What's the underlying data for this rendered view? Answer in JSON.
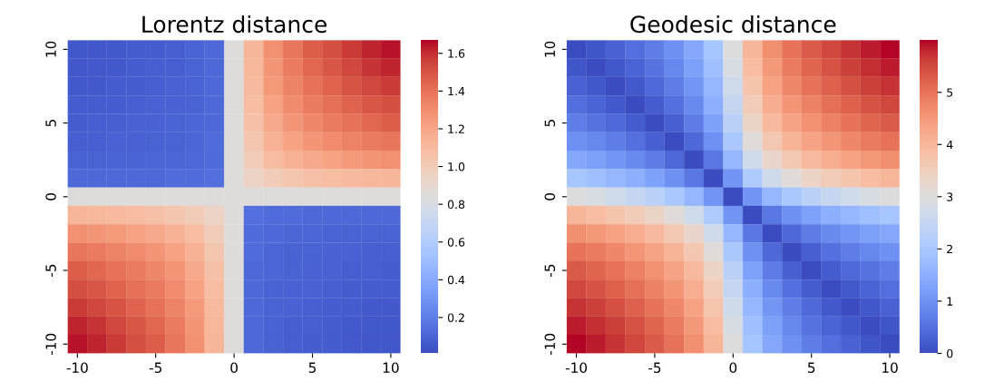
{
  "chart_data": [
    {
      "type": "heatmap",
      "title": "Lorentz distance",
      "categories": [
        "-10",
        null,
        null,
        null,
        "-5",
        null,
        null,
        null,
        "0",
        null,
        null,
        null,
        "5",
        null,
        null,
        null,
        "10"
      ],
      "y_categories": [
        "10",
        null,
        null,
        null,
        "5",
        null,
        null,
        null,
        "0",
        null,
        null,
        null,
        "-5",
        null,
        null,
        null,
        "-10"
      ],
      "clim": [
        0.01,
        1.67
      ],
      "cticks": [
        0.2,
        0.4,
        0.6,
        0.8,
        {
          "value": 1,
          "label": "1.0"
        },
        1.2,
        1.4,
        1.6
      ],
      "cells": [
        [
          0.05,
          0.05,
          0.06,
          0.07,
          0.07,
          0.08,
          0.1,
          0.12,
          0.85,
          1.13,
          1.29,
          1.39,
          1.47,
          1.52,
          1.57,
          1.62,
          1.65
        ],
        [
          0.05,
          0.06,
          0.06,
          0.07,
          0.08,
          0.08,
          0.1,
          0.12,
          0.85,
          1.12,
          1.27,
          1.37,
          1.44,
          1.49,
          1.54,
          1.59,
          1.62
        ],
        [
          0.06,
          0.06,
          0.07,
          0.07,
          0.08,
          0.09,
          0.1,
          0.12,
          0.85,
          1.1,
          1.25,
          1.34,
          1.4,
          1.45,
          1.5,
          1.54,
          1.57
        ],
        [
          0.07,
          0.07,
          0.07,
          0.08,
          0.09,
          0.09,
          0.1,
          0.12,
          0.85,
          1.09,
          1.22,
          1.31,
          1.37,
          1.41,
          1.45,
          1.49,
          1.52
        ],
        [
          0.07,
          0.08,
          0.08,
          0.09,
          0.09,
          0.1,
          0.11,
          0.12,
          0.85,
          1.07,
          1.19,
          1.27,
          1.32,
          1.37,
          1.4,
          1.44,
          1.47
        ],
        [
          0.08,
          0.08,
          0.09,
          0.09,
          0.1,
          0.1,
          0.11,
          0.13,
          0.85,
          1.04,
          1.15,
          1.22,
          1.27,
          1.31,
          1.34,
          1.37,
          1.39
        ],
        [
          0.1,
          0.1,
          0.1,
          0.1,
          0.11,
          0.11,
          0.12,
          0.13,
          0.85,
          1.0,
          1.09,
          1.15,
          1.19,
          1.22,
          1.25,
          1.27,
          1.29
        ],
        [
          0.12,
          0.12,
          0.12,
          0.12,
          0.12,
          0.13,
          0.13,
          0.14,
          0.85,
          0.95,
          1.0,
          1.04,
          1.07,
          1.09,
          1.1,
          1.12,
          1.13
        ],
        [
          0.85,
          0.85,
          0.85,
          0.85,
          0.85,
          0.85,
          0.85,
          0.85,
          0.85,
          0.85,
          0.85,
          0.85,
          0.85,
          0.85,
          0.85,
          0.85,
          0.85
        ],
        [
          1.13,
          1.12,
          1.1,
          1.09,
          1.07,
          1.04,
          1.0,
          0.95,
          0.85,
          0.14,
          0.13,
          0.13,
          0.12,
          0.12,
          0.12,
          0.12,
          0.12
        ],
        [
          1.29,
          1.27,
          1.25,
          1.22,
          1.19,
          1.15,
          1.09,
          1.0,
          0.85,
          0.13,
          0.12,
          0.11,
          0.11,
          0.1,
          0.1,
          0.1,
          0.1
        ],
        [
          1.39,
          1.37,
          1.34,
          1.31,
          1.27,
          1.22,
          1.15,
          1.04,
          0.85,
          0.13,
          0.11,
          0.1,
          0.1,
          0.09,
          0.09,
          0.08,
          0.08
        ],
        [
          1.47,
          1.44,
          1.4,
          1.37,
          1.32,
          1.27,
          1.19,
          1.07,
          0.85,
          0.12,
          0.11,
          0.1,
          0.09,
          0.09,
          0.08,
          0.08,
          0.07
        ],
        [
          1.52,
          1.49,
          1.45,
          1.41,
          1.37,
          1.31,
          1.22,
          1.09,
          0.85,
          0.12,
          0.1,
          0.09,
          0.09,
          0.08,
          0.07,
          0.07,
          0.07
        ],
        [
          1.57,
          1.54,
          1.5,
          1.45,
          1.4,
          1.34,
          1.25,
          1.1,
          0.85,
          0.12,
          0.1,
          0.09,
          0.08,
          0.07,
          0.07,
          0.06,
          0.06
        ],
        [
          1.62,
          1.59,
          1.54,
          1.49,
          1.44,
          1.37,
          1.27,
          1.12,
          0.85,
          0.12,
          0.1,
          0.08,
          0.08,
          0.07,
          0.06,
          0.06,
          0.05
        ],
        [
          1.65,
          1.62,
          1.57,
          1.52,
          1.47,
          1.39,
          1.29,
          1.13,
          0.85,
          0.12,
          0.1,
          0.08,
          0.07,
          0.07,
          0.06,
          0.05,
          0.05
        ]
      ]
    },
    {
      "type": "heatmap",
      "title": "Geodesic distance",
      "categories": [
        "-10",
        null,
        null,
        null,
        "-5",
        null,
        null,
        null,
        "0",
        null,
        null,
        null,
        "5",
        null,
        null,
        null,
        "10"
      ],
      "y_categories": [
        "10",
        null,
        null,
        null,
        "5",
        null,
        null,
        null,
        "0",
        null,
        null,
        null,
        "-5",
        null,
        null,
        null,
        "-10"
      ],
      "clim": [
        0,
        6
      ],
      "cticks": [
        0,
        1,
        2,
        3,
        4,
        5
      ],
      "cells": [
        [
          0,
          0.13,
          0.29,
          0.47,
          0.69,
          0.97,
          1.35,
          1.95,
          3.0,
          4.05,
          4.65,
          5.03,
          5.31,
          5.53,
          5.71,
          5.87,
          6.0
        ],
        [
          0.13,
          0,
          0.16,
          0.34,
          0.56,
          0.84,
          1.22,
          1.82,
          2.87,
          3.92,
          4.52,
          4.9,
          5.18,
          5.4,
          5.58,
          5.74,
          5.87
        ],
        [
          0.29,
          0.16,
          0,
          0.18,
          0.4,
          0.68,
          1.06,
          1.66,
          2.71,
          3.76,
          4.36,
          4.74,
          5.02,
          5.24,
          5.42,
          5.58,
          5.71
        ],
        [
          0.47,
          0.34,
          0.18,
          0,
          0.22,
          0.5,
          0.88,
          1.48,
          2.53,
          3.58,
          4.18,
          4.56,
          4.84,
          5.06,
          5.24,
          5.4,
          5.53
        ],
        [
          0.69,
          0.56,
          0.4,
          0.22,
          0,
          0.28,
          0.66,
          1.26,
          2.31,
          3.36,
          3.96,
          4.34,
          4.62,
          4.84,
          5.02,
          5.18,
          5.31
        ],
        [
          0.97,
          0.84,
          0.68,
          0.5,
          0.28,
          0,
          0.38,
          0.98,
          2.03,
          3.08,
          3.68,
          4.06,
          4.34,
          4.56,
          4.74,
          4.9,
          5.03
        ],
        [
          1.35,
          1.22,
          1.06,
          0.88,
          0.66,
          0.38,
          0,
          0.6,
          1.65,
          2.7,
          3.3,
          3.68,
          3.96,
          4.18,
          4.36,
          4.52,
          4.65
        ],
        [
          1.95,
          1.82,
          1.66,
          1.48,
          1.26,
          0.98,
          0.6,
          0,
          1.05,
          2.1,
          2.7,
          3.08,
          3.36,
          3.58,
          3.76,
          3.92,
          4.05
        ],
        [
          3.0,
          2.87,
          2.71,
          2.53,
          2.31,
          2.03,
          1.65,
          1.05,
          0,
          1.05,
          1.65,
          2.03,
          2.31,
          2.53,
          2.71,
          2.87,
          3.0
        ],
        [
          4.05,
          3.92,
          3.76,
          3.58,
          3.36,
          3.08,
          2.7,
          2.1,
          1.05,
          0,
          0.6,
          0.98,
          1.26,
          1.48,
          1.66,
          1.82,
          1.95
        ],
        [
          4.65,
          4.52,
          4.36,
          4.18,
          3.96,
          3.68,
          3.3,
          2.7,
          1.65,
          0.6,
          0,
          0.38,
          0.66,
          0.88,
          1.06,
          1.22,
          1.35
        ],
        [
          5.03,
          4.9,
          4.74,
          4.56,
          4.34,
          4.06,
          3.68,
          3.08,
          2.03,
          0.98,
          0.38,
          0,
          0.28,
          0.5,
          0.68,
          0.84,
          0.97
        ],
        [
          5.31,
          5.18,
          5.02,
          4.84,
          4.62,
          4.34,
          3.96,
          3.36,
          2.31,
          1.26,
          0.66,
          0.28,
          0,
          0.22,
          0.4,
          0.56,
          0.69
        ],
        [
          5.53,
          5.4,
          5.24,
          5.06,
          4.84,
          4.56,
          4.18,
          3.58,
          2.53,
          1.48,
          0.88,
          0.5,
          0.22,
          0,
          0.18,
          0.34,
          0.47
        ],
        [
          5.71,
          5.58,
          5.42,
          5.24,
          5.02,
          4.74,
          4.36,
          3.76,
          2.71,
          1.66,
          1.06,
          0.68,
          0.4,
          0.18,
          0,
          0.16,
          0.29
        ],
        [
          5.87,
          5.74,
          5.58,
          5.4,
          5.18,
          4.9,
          4.52,
          3.92,
          2.87,
          1.82,
          1.22,
          0.84,
          0.56,
          0.34,
          0.16,
          0,
          0.13
        ],
        [
          6.0,
          5.87,
          5.71,
          5.53,
          5.31,
          5.03,
          4.65,
          4.05,
          3.0,
          1.95,
          1.35,
          0.97,
          0.69,
          0.47,
          0.29,
          0.13,
          0
        ]
      ]
    }
  ]
}
